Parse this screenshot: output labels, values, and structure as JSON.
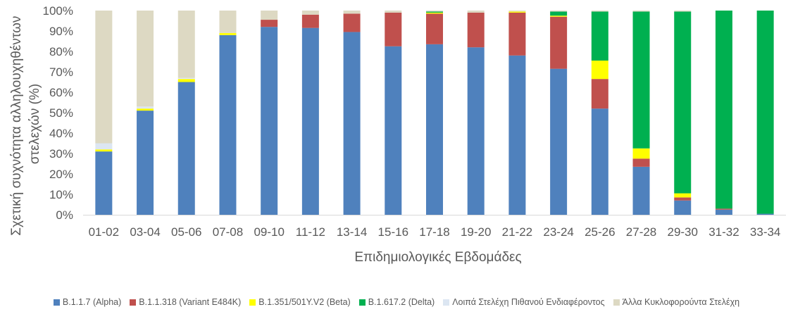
{
  "chart_data": {
    "type": "bar",
    "stacked": true,
    "ylabel": "Σχετική συχνότητα αλληλουχηθέντων στελεχών (%)",
    "ylabel_lines": [
      "Σχετική συχνότητα αλληλουχηθέντων",
      "στελεχών (%)"
    ],
    "xlabel": "Επιδημιολογικές Εβδομάδες",
    "ylim": [
      0,
      100
    ],
    "yticks": [
      "0%",
      "10%",
      "20%",
      "30%",
      "40%",
      "50%",
      "60%",
      "70%",
      "80%",
      "90%",
      "100%"
    ],
    "grid": false,
    "legend_position": "bottom",
    "categories": [
      "01-02",
      "03-04",
      "05-06",
      "07-08",
      "09-10",
      "11-12",
      "13-14",
      "15-16",
      "17-18",
      "19-20",
      "21-22",
      "23-24",
      "25-26",
      "27-28",
      "29-30",
      "31-32",
      "33-34"
    ],
    "series": [
      {
        "name": "B.1.1.7 (Alpha)",
        "color": "#4f81bd",
        "values": [
          31,
          51,
          65,
          88,
          92,
          91.5,
          89.5,
          82.5,
          83.5,
          82,
          78,
          71.5,
          52,
          23.5,
          7,
          2.5,
          0.5
        ]
      },
      {
        "name": "B.1.1.318 (Variant E484K)",
        "color": "#c0504d",
        "values": [
          0,
          0,
          0,
          0,
          3.5,
          6.5,
          9,
          16.5,
          15,
          17,
          21,
          25.5,
          14.5,
          4,
          1.5,
          0.5,
          0
        ]
      },
      {
        "name": "B.1.351/501Y.V2 (Beta)",
        "color": "#ffff00",
        "values": [
          1,
          1,
          1.5,
          1,
          0,
          0,
          0,
          0,
          0.5,
          0,
          0.5,
          0.5,
          9,
          5,
          2,
          0,
          0
        ]
      },
      {
        "name": "B.1.617.2 (Delta)",
        "color": "#00b050",
        "values": [
          0,
          0,
          0,
          0,
          0,
          0,
          0,
          0,
          0.5,
          0,
          0,
          2,
          24,
          67,
          89,
          97,
          99.5
        ]
      },
      {
        "name": "Λοιπά Στελέχη Πιθανού Ενδιαφέροντος",
        "color": "#dce6f2",
        "values": [
          3,
          1,
          0.5,
          0,
          0,
          0,
          0,
          0,
          0,
          0,
          0,
          0,
          0,
          0,
          0,
          0,
          0
        ]
      },
      {
        "name": "Άλλα Κυκλοφορούντα Στελέχη",
        "color": "#ddd9c3",
        "values": [
          65,
          47,
          33,
          11,
          4.5,
          2,
          1.5,
          1,
          0.5,
          1,
          0.5,
          0.5,
          0.5,
          0.5,
          0.5,
          0,
          0
        ]
      }
    ]
  }
}
